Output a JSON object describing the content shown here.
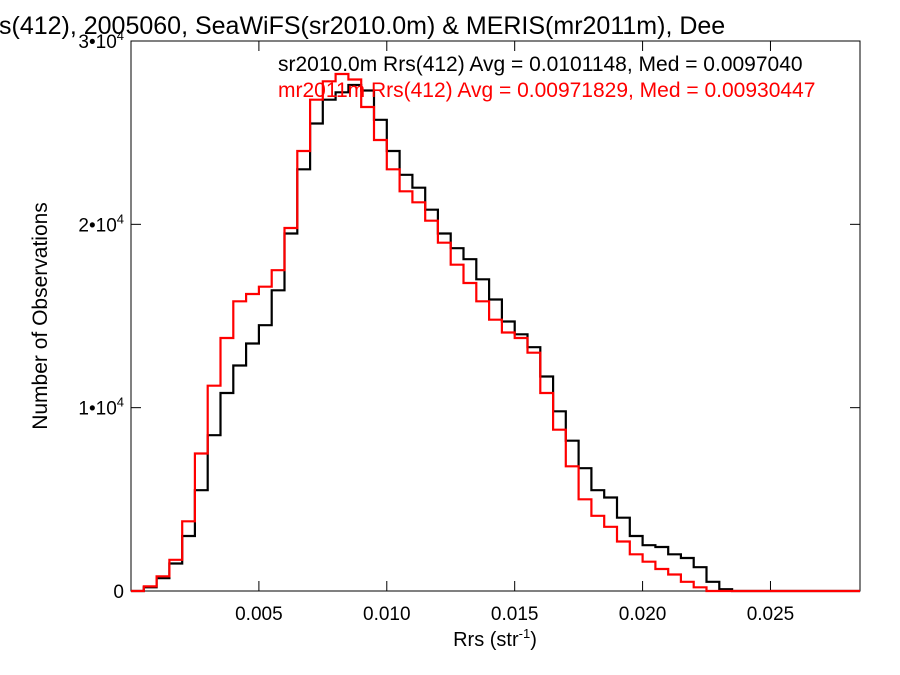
{
  "chart_data": {
    "type": "line",
    "title": "s(412), 2005060, SeaWiFS(sr2010.0m) & MERIS(mr2011m), Dee",
    "xlabel": "Rrs (str",
    "xlabel_sup": "-1",
    "xlabel_tail": ")",
    "ylabel": "Number of Observations",
    "xlim": [
      0.0,
      0.0285
    ],
    "ylim": [
      0,
      30000
    ],
    "xticks": [
      0.005,
      0.01,
      0.015,
      0.02,
      0.025
    ],
    "xtick_labels": [
      "0.005",
      "0.010",
      "0.015",
      "0.020",
      "0.025"
    ],
    "yticks": [
      {
        "value": 0,
        "base": "0",
        "exp": ""
      },
      {
        "value": 10000,
        "base": "1•10",
        "exp": "4"
      },
      {
        "value": 20000,
        "base": "2•10",
        "exp": "4"
      },
      {
        "value": 30000,
        "base": "3•10",
        "exp": "4"
      }
    ],
    "grid": false,
    "legend_placement": "top-right",
    "series": [
      {
        "name": "sr2010.0m",
        "label": "sr2010.0m Rrs(412) Avg = 0.0101148, Med = 0.0097040",
        "color": "#000000",
        "x": [
          0.0,
          0.0005,
          0.001,
          0.0015,
          0.002,
          0.0025,
          0.003,
          0.0035,
          0.004,
          0.0045,
          0.005,
          0.0055,
          0.006,
          0.0065,
          0.007,
          0.0075,
          0.008,
          0.0085,
          0.009,
          0.0095,
          0.01,
          0.0105,
          0.011,
          0.0115,
          0.012,
          0.0125,
          0.013,
          0.0135,
          0.014,
          0.0145,
          0.015,
          0.0155,
          0.016,
          0.0165,
          0.017,
          0.0175,
          0.018,
          0.0185,
          0.019,
          0.0195,
          0.02,
          0.0205,
          0.021,
          0.0215,
          0.022,
          0.0225,
          0.023,
          0.0235,
          0.024,
          0.0245,
          0.025,
          0.026,
          0.027,
          0.0285
        ],
        "y": [
          0,
          200,
          700,
          1500,
          3000,
          5500,
          8500,
          10800,
          12300,
          13500,
          14500,
          16400,
          19500,
          23000,
          25500,
          26800,
          27200,
          27600,
          27300,
          25700,
          24000,
          22700,
          22000,
          20800,
          19500,
          18700,
          18100,
          17000,
          15900,
          14700,
          14000,
          13300,
          11700,
          9800,
          8200,
          6700,
          5500,
          5100,
          4000,
          3000,
          2500,
          2400,
          2000,
          1800,
          1300,
          500,
          100,
          0,
          0,
          0,
          0,
          0,
          0,
          0
        ]
      },
      {
        "name": "mr2011m",
        "label": "mr2011m Rrs(412) Avg = 0.00971829, Med = 0.00930447",
        "color": "#ff0000",
        "x": [
          0.0,
          0.0005,
          0.001,
          0.0015,
          0.002,
          0.0025,
          0.003,
          0.0035,
          0.004,
          0.0045,
          0.005,
          0.0055,
          0.006,
          0.0065,
          0.007,
          0.0075,
          0.008,
          0.0085,
          0.009,
          0.0095,
          0.01,
          0.0105,
          0.011,
          0.0115,
          0.012,
          0.0125,
          0.013,
          0.0135,
          0.014,
          0.0145,
          0.015,
          0.0155,
          0.016,
          0.0165,
          0.017,
          0.0175,
          0.018,
          0.0185,
          0.019,
          0.0195,
          0.02,
          0.0205,
          0.021,
          0.0215,
          0.022,
          0.0225,
          0.023,
          0.0235,
          0.024,
          0.0245,
          0.025,
          0.026,
          0.027,
          0.0285
        ],
        "y": [
          0,
          250,
          800,
          1700,
          3800,
          7500,
          11200,
          13800,
          15800,
          16200,
          16600,
          17500,
          19800,
          24000,
          26800,
          27800,
          28200,
          27900,
          26400,
          24600,
          23000,
          21800,
          21200,
          20200,
          19000,
          17800,
          16800,
          15800,
          14800,
          14100,
          13800,
          13000,
          10800,
          8800,
          6800,
          5000,
          4100,
          3500,
          2700,
          2000,
          1600,
          1200,
          900,
          500,
          200,
          0,
          0,
          0,
          0,
          0,
          0,
          0,
          0,
          0
        ]
      }
    ]
  }
}
